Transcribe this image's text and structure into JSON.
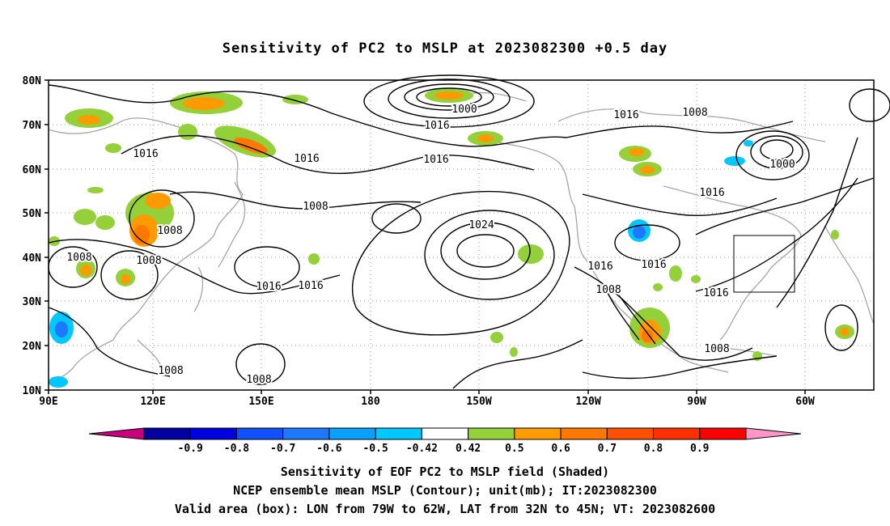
{
  "title": "Sensitivity of PC2 to MSLP at 2023082300 +0.5 day",
  "lat_labels": [
    "80N",
    "70N",
    "60N",
    "50N",
    "40N",
    "30N",
    "20N",
    "10N"
  ],
  "lon_labels": [
    "90E",
    "120E",
    "150E",
    "180",
    "150W",
    "120W",
    "90W",
    "60W"
  ],
  "isobar_labels": [
    "1000",
    "1016",
    "1008",
    "1016",
    "1016",
    "1016",
    "1008",
    "1000",
    "1016",
    "1008",
    "1008",
    "1024",
    "1008",
    "1016",
    "1016",
    "1016",
    "1016",
    "1008",
    "1016",
    "1016",
    "1008",
    "1008",
    "1008"
  ],
  "colorbar": {
    "tick_labels": [
      "-0.9",
      "-0.8",
      "-0.7",
      "-0.6",
      "-0.5",
      "-0.42",
      "0.42",
      "0.5",
      "0.6",
      "0.7",
      "0.8",
      "0.9"
    ],
    "colors": [
      "#c8007e",
      "#0000a0",
      "#0000e0",
      "#1050ff",
      "#1e78ff",
      "#0aa0ff",
      "#00c8ff",
      "#ffffff",
      "#94d03a",
      "#ff9a00",
      "#ff7800",
      "#ff5000",
      "#ff3000",
      "#ff0000",
      "#ff96c8"
    ]
  },
  "valid_box": {
    "lon": [
      -79,
      -62
    ],
    "lat": [
      32,
      45
    ]
  },
  "captions": [
    "Sensitivity of EOF PC2 to MSLP field (Shaded)",
    "NCEP ensemble mean MSLP (Contour); unit(mb); IT:2023082300",
    "Valid area (box): LON from 79W to 62W, LAT from 32N to 45N; VT: 2023082600"
  ]
}
